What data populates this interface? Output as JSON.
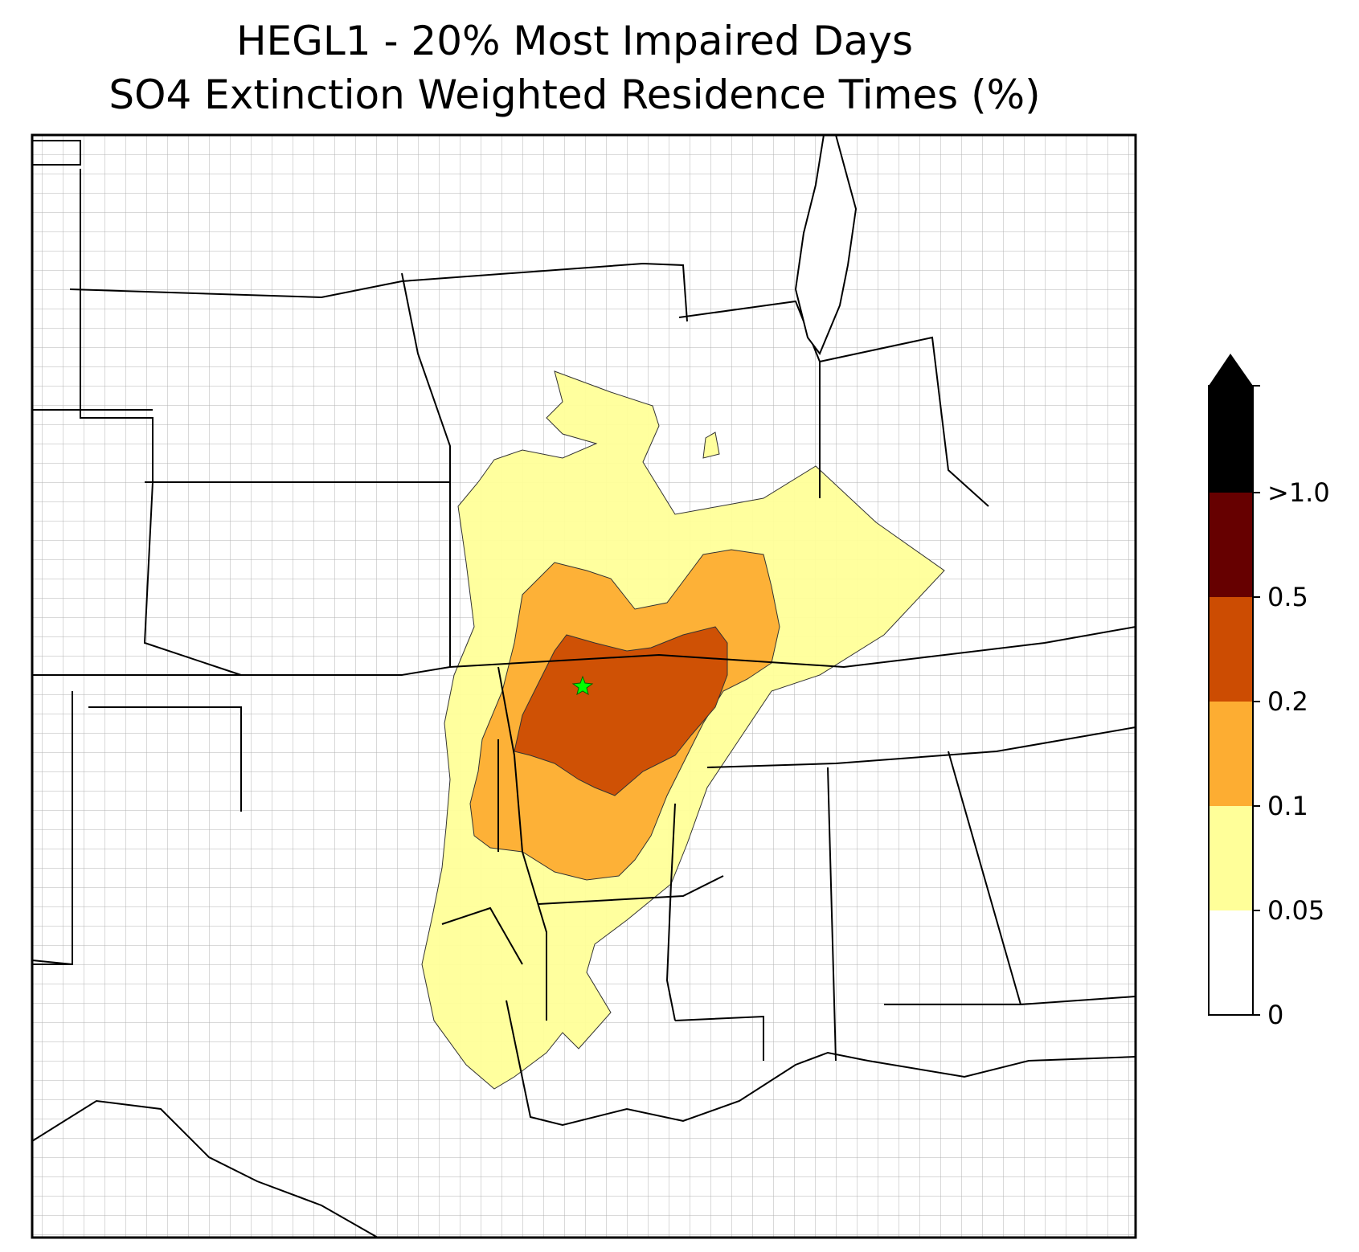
{
  "title": {
    "line1": "HEGL1 - 20% Most Impaired Days",
    "line2": "SO4 Extinction Weighted Residence Times (%)"
  },
  "colorbar": {
    "levels": [
      {
        "label": "0",
        "value": 0,
        "color": "#ffffff"
      },
      {
        "label": "0.05",
        "value": 0.05,
        "color": "#ffff99"
      },
      {
        "label": "0.1",
        "value": 0.1,
        "color": "#fdad32"
      },
      {
        "label": "0.2",
        "value": 0.2,
        "color": "#cc4c02"
      },
      {
        "label": "0.5",
        "value": 0.5,
        "color": "#660000"
      },
      {
        "label": ">1.0",
        "value": 1.0,
        "color": "#000000"
      }
    ],
    "extend": "max"
  },
  "contour_colors": {
    "band_0_05": "#ffff99",
    "band_0_1": "#fdad32",
    "band_0_2": "#cc4c02"
  },
  "site_marker": {
    "symbol": "star",
    "color": "#00ff00"
  },
  "map": {
    "border_color": "#000000",
    "county_color": "#a6a6a6",
    "background": "#ffffff"
  }
}
